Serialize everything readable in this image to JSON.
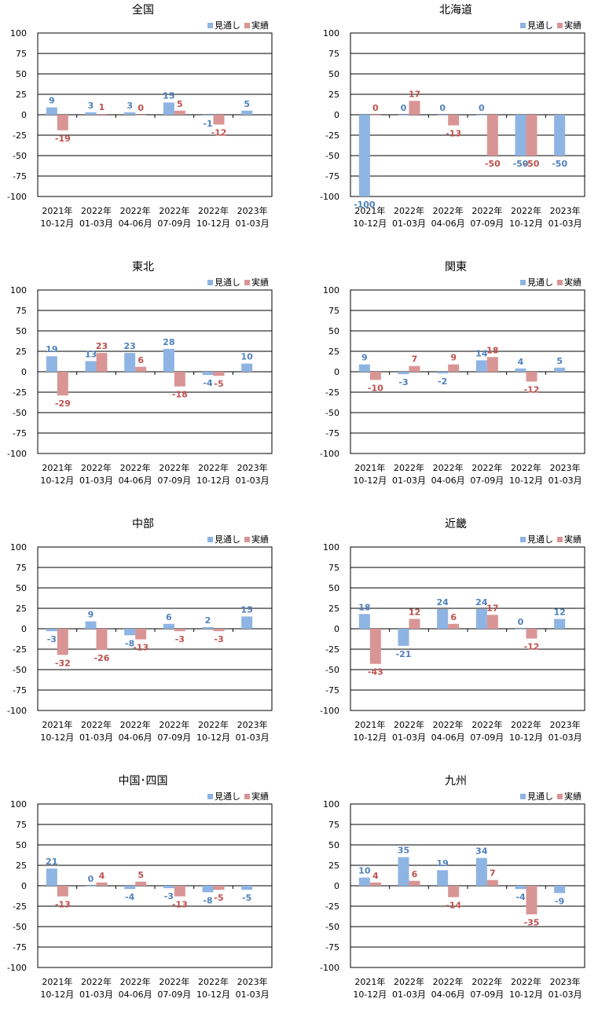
{
  "colors": {
    "forecast": "#8eb4e3",
    "actual": "#d99594",
    "forecast_label": "#4f81bd",
    "actual_label": "#c0504d"
  },
  "chart_data": [
    {
      "type": "bar",
      "title": "全国",
      "categories": [
        [
          "2021年",
          "10-12月"
        ],
        [
          "2022年",
          "01-03月"
        ],
        [
          "2022年",
          "04-06月"
        ],
        [
          "2022年",
          "07-09月"
        ],
        [
          "2022年",
          "10-12月"
        ],
        [
          "2023年",
          "01-03月"
        ]
      ],
      "series": [
        {
          "name": "見通し",
          "values": [
            9,
            3,
            3,
            15,
            -1,
            5
          ]
        },
        {
          "name": "実績",
          "values": [
            -19,
            1,
            0,
            5,
            -12,
            null
          ]
        }
      ],
      "ylim": [
        -100,
        100
      ],
      "yticks": [
        100,
        75,
        50,
        25,
        0,
        -25,
        -50,
        -75,
        -100
      ],
      "legend": "top-right",
      "grid": true
    },
    {
      "type": "bar",
      "title": "北海道",
      "categories": [
        [
          "2021年",
          "10-12月"
        ],
        [
          "2022年",
          "01-03月"
        ],
        [
          "2022年",
          "04-06月"
        ],
        [
          "2022年",
          "07-09月"
        ],
        [
          "2022年",
          "10-12月"
        ],
        [
          "2023年",
          "01-03月"
        ]
      ],
      "series": [
        {
          "name": "見通し",
          "values": [
            -100,
            0,
            0,
            0,
            -50,
            -50
          ]
        },
        {
          "name": "実績",
          "values": [
            0,
            17,
            -13,
            -50,
            -50,
            null
          ]
        }
      ],
      "ylim": [
        -100,
        100
      ],
      "yticks": [
        100,
        75,
        50,
        25,
        0,
        -25,
        -50,
        -75,
        -100
      ],
      "legend": "top-right",
      "grid": true
    },
    {
      "type": "bar",
      "title": "東北",
      "categories": [
        [
          "2021年",
          "10-12月"
        ],
        [
          "2022年",
          "01-03月"
        ],
        [
          "2022年",
          "04-06月"
        ],
        [
          "2022年",
          "07-09月"
        ],
        [
          "2022年",
          "10-12月"
        ],
        [
          "2023年",
          "01-03月"
        ]
      ],
      "series": [
        {
          "name": "見通し",
          "values": [
            19,
            13,
            23,
            28,
            -4,
            10
          ]
        },
        {
          "name": "実績",
          "values": [
            -29,
            23,
            6,
            -18,
            -5,
            null
          ]
        }
      ],
      "ylim": [
        -100,
        100
      ],
      "yticks": [
        100,
        75,
        50,
        25,
        0,
        -25,
        -50,
        -75,
        -100
      ],
      "legend": "top-right",
      "grid": true
    },
    {
      "type": "bar",
      "title": "関東",
      "categories": [
        [
          "2021年",
          "10-12月"
        ],
        [
          "2022年",
          "01-03月"
        ],
        [
          "2022年",
          "04-06月"
        ],
        [
          "2022年",
          "07-09月"
        ],
        [
          "2022年",
          "10-12月"
        ],
        [
          "2023年",
          "01-03月"
        ]
      ],
      "series": [
        {
          "name": "見通し",
          "values": [
            9,
            -3,
            -2,
            14,
            4,
            5
          ]
        },
        {
          "name": "実績",
          "values": [
            -10,
            7,
            9,
            18,
            -12,
            null
          ]
        }
      ],
      "ylim": [
        -100,
        100
      ],
      "yticks": [
        100,
        75,
        50,
        25,
        0,
        -25,
        -50,
        -75,
        -100
      ],
      "legend": "top-right",
      "grid": true
    },
    {
      "type": "bar",
      "title": "中部",
      "categories": [
        [
          "2021年",
          "10-12月"
        ],
        [
          "2022年",
          "01-03月"
        ],
        [
          "2022年",
          "04-06月"
        ],
        [
          "2022年",
          "07-09月"
        ],
        [
          "2022年",
          "10-12月"
        ],
        [
          "2023年",
          "01-03月"
        ]
      ],
      "series": [
        {
          "name": "見通し",
          "values": [
            -3,
            9,
            -8,
            6,
            2,
            15
          ]
        },
        {
          "name": "実績",
          "values": [
            -32,
            -26,
            -13,
            -3,
            -3,
            null
          ]
        }
      ],
      "ylim": [
        -100,
        100
      ],
      "yticks": [
        100,
        75,
        50,
        25,
        0,
        -25,
        -50,
        -75,
        -100
      ],
      "legend": "top-right",
      "grid": true
    },
    {
      "type": "bar",
      "title": "近畿",
      "categories": [
        [
          "2021年",
          "10-12月"
        ],
        [
          "2022年",
          "01-03月"
        ],
        [
          "2022年",
          "04-06月"
        ],
        [
          "2022年",
          "07-09月"
        ],
        [
          "2022年",
          "10-12月"
        ],
        [
          "2023年",
          "01-03月"
        ]
      ],
      "series": [
        {
          "name": "見通し",
          "values": [
            18,
            -21,
            24,
            24,
            0,
            12
          ]
        },
        {
          "name": "実績",
          "values": [
            -43,
            12,
            6,
            17,
            -12,
            null
          ]
        }
      ],
      "ylim": [
        -100,
        100
      ],
      "yticks": [
        100,
        75,
        50,
        25,
        0,
        -25,
        -50,
        -75,
        -100
      ],
      "legend": "top-right",
      "grid": true
    },
    {
      "type": "bar",
      "title": "中国･四国",
      "categories": [
        [
          "2021年",
          "10-12月"
        ],
        [
          "2022年",
          "01-03月"
        ],
        [
          "2022年",
          "04-06月"
        ],
        [
          "2022年",
          "07-09月"
        ],
        [
          "2022年",
          "10-12月"
        ],
        [
          "2023年",
          "01-03月"
        ]
      ],
      "series": [
        {
          "name": "見通し",
          "values": [
            21,
            0,
            -4,
            -3,
            -8,
            -5
          ]
        },
        {
          "name": "実績",
          "values": [
            -13,
            4,
            5,
            -13,
            -5,
            null
          ]
        }
      ],
      "ylim": [
        -100,
        100
      ],
      "yticks": [
        100,
        75,
        50,
        25,
        0,
        -25,
        -50,
        -75,
        -100
      ],
      "legend": "top-right",
      "grid": true
    },
    {
      "type": "bar",
      "title": "九州",
      "categories": [
        [
          "2021年",
          "10-12月"
        ],
        [
          "2022年",
          "01-03月"
        ],
        [
          "2022年",
          "04-06月"
        ],
        [
          "2022年",
          "07-09月"
        ],
        [
          "2022年",
          "10-12月"
        ],
        [
          "2023年",
          "01-03月"
        ]
      ],
      "series": [
        {
          "name": "見通し",
          "values": [
            10,
            35,
            19,
            34,
            -4,
            -9
          ]
        },
        {
          "name": "実績",
          "values": [
            4,
            6,
            -14,
            7,
            -35,
            null
          ]
        }
      ],
      "ylim": [
        -100,
        100
      ],
      "yticks": [
        100,
        75,
        50,
        25,
        0,
        -25,
        -50,
        -75,
        -100
      ],
      "legend": "top-right",
      "grid": true
    }
  ]
}
